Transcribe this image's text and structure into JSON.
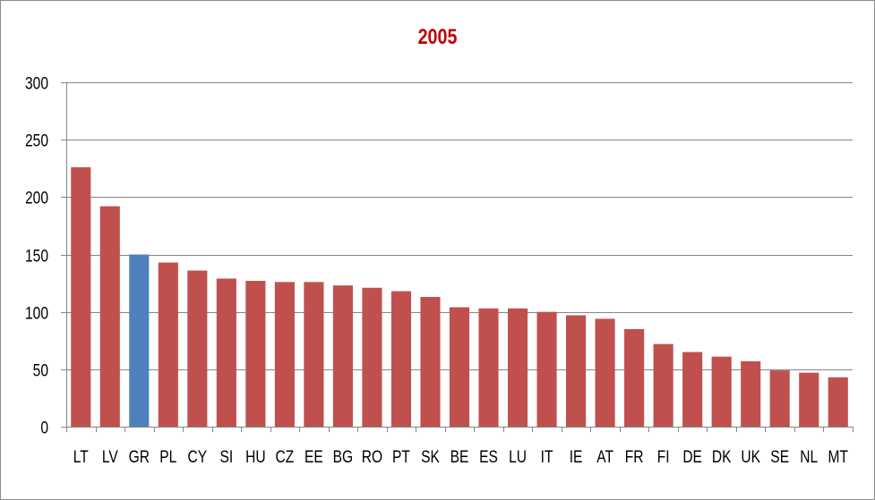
{
  "chart_data": {
    "type": "bar",
    "title": "2005",
    "xlabel": "",
    "ylabel": "",
    "ylim": [
      0,
      300
    ],
    "yticks": [
      "0",
      "50",
      "100",
      "150",
      "200",
      "250",
      "300"
    ],
    "ytick_values": [
      0,
      50,
      100,
      150,
      200,
      250,
      300
    ],
    "categories": [
      "LT",
      "LV",
      "GR",
      "PL",
      "CY",
      "SI",
      "HU",
      "CZ",
      "EE",
      "BG",
      "RO",
      "PT",
      "SK",
      "BE",
      "ES",
      "LU",
      "IT",
      "IE",
      "AT",
      "FR",
      "FI",
      "DE",
      "DK",
      "UK",
      "SE",
      "NL",
      "MT"
    ],
    "values": [
      226,
      192,
      150,
      143,
      136,
      129,
      127,
      126,
      126,
      123,
      121,
      118,
      113,
      104,
      103,
      103,
      100,
      97,
      94,
      85,
      72,
      65,
      61,
      57,
      49,
      47,
      43
    ],
    "grid": true,
    "legend": "none",
    "highlight_category": "GR"
  },
  "colors": {
    "title": "#c00000",
    "bar": "#c0504d",
    "highlight": "#4f81bd",
    "grid": "#868686",
    "axis": "#868686",
    "text": "#000000"
  }
}
